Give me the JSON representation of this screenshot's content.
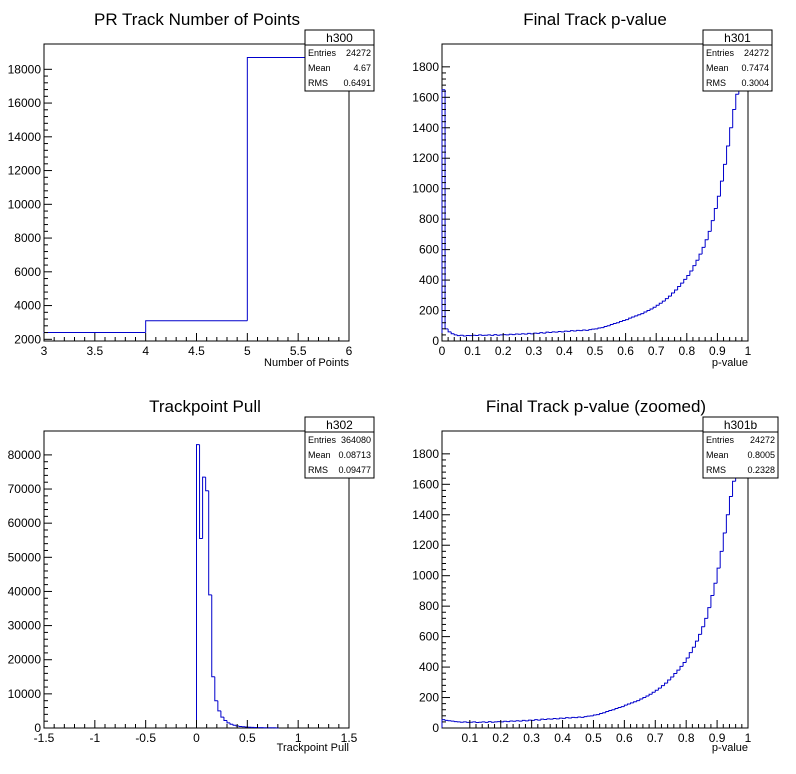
{
  "colors": {
    "line": "#0000cc",
    "frame": "#000000",
    "background": "#ffffff"
  },
  "chart_data": [
    {
      "type": "histogram",
      "title": "PR Track Number of Points",
      "xlabel": "Number of Points",
      "ylabel": "",
      "xlim": [
        3,
        6
      ],
      "ylim": [
        1900,
        19500
      ],
      "xticks": [
        "3",
        "3.5",
        "4",
        "4.5",
        "5",
        "5.5",
        "6"
      ],
      "xtick_values": [
        3,
        3.5,
        4,
        4.5,
        5,
        5.5,
        6
      ],
      "yticks": [
        "2000",
        "4000",
        "6000",
        "8000",
        "10000",
        "12000",
        "14000",
        "16000",
        "18000"
      ],
      "ytick_values": [
        2000,
        4000,
        6000,
        8000,
        10000,
        12000,
        14000,
        16000,
        18000
      ],
      "bin_edges": [
        3,
        4,
        5,
        6
      ],
      "values": [
        2400,
        3100,
        18700
      ],
      "stats": {
        "name": "h300",
        "entries_label": "Entries",
        "entries": "24272",
        "mean_label": "Mean",
        "mean": "4.67",
        "rms_label": "RMS",
        "rms": "0.6491"
      }
    },
    {
      "type": "histogram",
      "title": "Final Track p-value",
      "xlabel": "p-value",
      "ylabel": "",
      "xlim": [
        0,
        1
      ],
      "ylim": [
        0,
        1950
      ],
      "xticks": [
        "0",
        "0.1",
        "0.2",
        "0.3",
        "0.4",
        "0.5",
        "0.6",
        "0.7",
        "0.8",
        "0.9",
        "1"
      ],
      "xtick_values": [
        0,
        0.1,
        0.2,
        0.3,
        0.4,
        0.5,
        0.6,
        0.7,
        0.8,
        0.9,
        1
      ],
      "yticks": [
        "0",
        "200",
        "400",
        "600",
        "800",
        "1000",
        "1200",
        "1400",
        "1600",
        "1800"
      ],
      "ytick_values": [
        0,
        200,
        400,
        600,
        800,
        1000,
        1200,
        1400,
        1600,
        1800
      ],
      "bin_edges": [
        0,
        0.01,
        0.02,
        0.03,
        0.04,
        0.05,
        0.06,
        0.07,
        0.08,
        0.09,
        0.1,
        0.11,
        0.12,
        0.13,
        0.14,
        0.15,
        0.16,
        0.17,
        0.18,
        0.19,
        0.2,
        0.21,
        0.22,
        0.23,
        0.24,
        0.25,
        0.26,
        0.27,
        0.28,
        0.29,
        0.3,
        0.31,
        0.32,
        0.33,
        0.34,
        0.35,
        0.36,
        0.37,
        0.38,
        0.39,
        0.4,
        0.41,
        0.42,
        0.43,
        0.44,
        0.45,
        0.46,
        0.47,
        0.48,
        0.49,
        0.5,
        0.51,
        0.52,
        0.53,
        0.54,
        0.55,
        0.56,
        0.57,
        0.58,
        0.59,
        0.6,
        0.61,
        0.62,
        0.63,
        0.64,
        0.65,
        0.66,
        0.67,
        0.68,
        0.69,
        0.7,
        0.71,
        0.72,
        0.73,
        0.74,
        0.75,
        0.76,
        0.77,
        0.78,
        0.79,
        0.8,
        0.81,
        0.82,
        0.83,
        0.84,
        0.85,
        0.86,
        0.87,
        0.88,
        0.89,
        0.9,
        0.91,
        0.92,
        0.93,
        0.94,
        0.95,
        0.96,
        0.97,
        0.98,
        0.99,
        1
      ],
      "values": [
        1650,
        80,
        60,
        48,
        40,
        35,
        38,
        33,
        36,
        35,
        38,
        36,
        40,
        37,
        38,
        40,
        37,
        42,
        38,
        40,
        42,
        40,
        44,
        42,
        46,
        44,
        48,
        45,
        50,
        47,
        52,
        50,
        55,
        52,
        58,
        56,
        60,
        58,
        62,
        60,
        65,
        63,
        68,
        66,
        70,
        68,
        72,
        70,
        75,
        78,
        80,
        85,
        88,
        95,
        100,
        108,
        115,
        120,
        128,
        135,
        140,
        150,
        158,
        165,
        172,
        180,
        190,
        200,
        210,
        222,
        235,
        248,
        262,
        278,
        295,
        315,
        335,
        358,
        380,
        405,
        430,
        460,
        495,
        530,
        570,
        615,
        665,
        720,
        790,
        870,
        950,
        1050,
        1160,
        1280,
        1400,
        1520,
        1620,
        1700,
        1750,
        1720
      ],
      "stats": {
        "name": "h301",
        "entries_label": "Entries",
        "entries": "24272",
        "mean_label": "Mean",
        "mean": "0.7474",
        "rms_label": "RMS",
        "rms": "0.3004"
      }
    },
    {
      "type": "histogram",
      "title": "Trackpoint Pull",
      "xlabel": "Trackpoint Pull",
      "ylabel": "",
      "xlim": [
        -1.5,
        1.5
      ],
      "ylim": [
        0,
        87000
      ],
      "xticks": [
        "-1.5",
        "-1",
        "-0.5",
        "0",
        "0.5",
        "1",
        "1.5"
      ],
      "xtick_values": [
        -1.5,
        -1,
        -0.5,
        0,
        0.5,
        1,
        1.5
      ],
      "yticks": [
        "0",
        "10000",
        "20000",
        "30000",
        "40000",
        "50000",
        "60000",
        "70000",
        "80000"
      ],
      "ytick_values": [
        0,
        10000,
        20000,
        30000,
        40000,
        50000,
        60000,
        70000,
        80000
      ],
      "bin_edges": [
        0,
        0.03,
        0.06,
        0.09,
        0.12,
        0.15,
        0.18,
        0.21,
        0.24,
        0.27,
        0.3,
        0.33,
        0.36,
        0.39,
        0.42,
        0.45,
        0.48,
        0.51,
        0.54,
        0.57,
        0.6,
        0.63,
        0.66,
        0.69,
        0.72,
        0.75,
        0.78,
        0.81
      ],
      "values": [
        83000,
        55500,
        73500,
        69500,
        39000,
        15000,
        8000,
        5000,
        3200,
        2200,
        1500,
        1100,
        800,
        600,
        450,
        350,
        280,
        220,
        180,
        150,
        120,
        100,
        90,
        80,
        70,
        60,
        50
      ],
      "stats": {
        "name": "h302",
        "entries_label": "Entries",
        "entries": "364080",
        "mean_label": "Mean",
        "mean": "0.08713",
        "rms_label": "RMS",
        "rms": "0.09477"
      }
    },
    {
      "type": "histogram",
      "title": "Final Track p-value (zoomed)",
      "xlabel": "p-value",
      "ylabel": "",
      "xlim": [
        0.01,
        1
      ],
      "ylim": [
        0,
        1950
      ],
      "xticks": [
        "0.1",
        "0.2",
        "0.3",
        "0.4",
        "0.5",
        "0.6",
        "0.7",
        "0.8",
        "0.9",
        "1"
      ],
      "xtick_values": [
        0.1,
        0.2,
        0.3,
        0.4,
        0.5,
        0.6,
        0.7,
        0.8,
        0.9,
        1
      ],
      "yticks": [
        "0",
        "200",
        "400",
        "600",
        "800",
        "1000",
        "1200",
        "1400",
        "1600",
        "1800"
      ],
      "ytick_values": [
        0,
        200,
        400,
        600,
        800,
        1000,
        1200,
        1400,
        1600,
        1800
      ],
      "bin_edges": [
        0.01,
        0.02,
        0.03,
        0.04,
        0.05,
        0.06,
        0.07,
        0.08,
        0.09,
        0.1,
        0.11,
        0.12,
        0.13,
        0.14,
        0.15,
        0.16,
        0.17,
        0.18,
        0.19,
        0.2,
        0.21,
        0.22,
        0.23,
        0.24,
        0.25,
        0.26,
        0.27,
        0.28,
        0.29,
        0.3,
        0.31,
        0.32,
        0.33,
        0.34,
        0.35,
        0.36,
        0.37,
        0.38,
        0.39,
        0.4,
        0.41,
        0.42,
        0.43,
        0.44,
        0.45,
        0.46,
        0.47,
        0.48,
        0.49,
        0.5,
        0.51,
        0.52,
        0.53,
        0.54,
        0.55,
        0.56,
        0.57,
        0.58,
        0.59,
        0.6,
        0.61,
        0.62,
        0.63,
        0.64,
        0.65,
        0.66,
        0.67,
        0.68,
        0.69,
        0.7,
        0.71,
        0.72,
        0.73,
        0.74,
        0.75,
        0.76,
        0.77,
        0.78,
        0.79,
        0.8,
        0.81,
        0.82,
        0.83,
        0.84,
        0.85,
        0.86,
        0.87,
        0.88,
        0.89,
        0.9,
        0.91,
        0.92,
        0.93,
        0.94,
        0.95,
        0.96,
        0.97,
        0.98,
        0.99,
        1
      ],
      "values": [
        55,
        50,
        48,
        45,
        42,
        40,
        38,
        40,
        37,
        38,
        40,
        36,
        38,
        40,
        37,
        42,
        38,
        40,
        42,
        40,
        44,
        42,
        46,
        44,
        48,
        45,
        50,
        47,
        52,
        50,
        55,
        52,
        58,
        56,
        60,
        58,
        62,
        60,
        65,
        63,
        68,
        66,
        70,
        68,
        72,
        70,
        75,
        78,
        80,
        85,
        88,
        95,
        100,
        108,
        115,
        120,
        128,
        135,
        140,
        150,
        158,
        165,
        172,
        180,
        190,
        200,
        210,
        222,
        235,
        248,
        262,
        278,
        295,
        315,
        335,
        358,
        380,
        405,
        430,
        460,
        495,
        530,
        570,
        615,
        665,
        720,
        790,
        870,
        950,
        1050,
        1160,
        1280,
        1400,
        1520,
        1620,
        1700,
        1750,
        1720,
        1690
      ],
      "stats": {
        "name": "h301b",
        "entries_label": "Entries",
        "entries": "24272",
        "mean_label": "Mean",
        "mean": "0.8005",
        "rms_label": "RMS",
        "rms": "0.2328"
      }
    }
  ]
}
